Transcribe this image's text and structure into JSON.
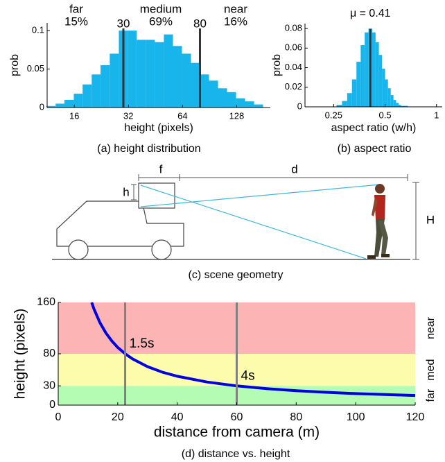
{
  "chart_data": [
    {
      "type": "histogram",
      "caption": "(a) height distribution",
      "xlabel": "height (pixels)",
      "ylabel": "prob",
      "xscale": "log",
      "bins": [
        11.2,
        12.6,
        14.1,
        15.9,
        17.8,
        20,
        22.4,
        25.2,
        28.3,
        31.7,
        35.6,
        40,
        44.9,
        50.4,
        56.6,
        63.5,
        71.3,
        80,
        89.8,
        100.8,
        113.1,
        127,
        142.5,
        160,
        179.6
      ],
      "values": [
        0.002,
        0.005,
        0.01,
        0.018,
        0.03,
        0.043,
        0.055,
        0.07,
        0.1,
        0.1,
        0.088,
        0.088,
        0.085,
        0.095,
        0.08,
        0.07,
        0.058,
        0.043,
        0.035,
        0.025,
        0.02,
        0.012,
        0.008,
        0.004
      ],
      "color": "#18b4ec",
      "xlim": [
        11.3,
        197
      ],
      "xticks": [
        16,
        32,
        64,
        128
      ],
      "ylim": [
        0,
        0.11
      ],
      "yticks": [
        0,
        0.05,
        0.1
      ],
      "vlines": [
        30,
        80
      ],
      "vline_color": "#333333",
      "regions": {
        "names": [
          "far",
          "medium",
          "near"
        ],
        "values": [
          15,
          69,
          16
        ],
        "value_labels": [
          "15%",
          "69%",
          "16%"
        ]
      }
    },
    {
      "type": "histogram",
      "caption": "(b) aspect ratio",
      "xlabel": "aspect ratio (w/h)",
      "ylabel": "prob",
      "xscale": "log",
      "bins": [
        0.2,
        0.22,
        0.24,
        0.26,
        0.28,
        0.3,
        0.32,
        0.34,
        0.36,
        0.38,
        0.4,
        0.42,
        0.44,
        0.46,
        0.48,
        0.5,
        0.52,
        0.54,
        0.56,
        0.58,
        0.6,
        0.62,
        0.64,
        0.66,
        0.68,
        0.7,
        0.72,
        0.74,
        0.76,
        0.78,
        0.8
      ],
      "values": [
        0,
        0,
        0,
        0.002,
        0.006,
        0.014,
        0.028,
        0.046,
        0.063,
        0.076,
        0.08,
        0.076,
        0.066,
        0.053,
        0.039,
        0.028,
        0.019,
        0.012,
        0.007,
        0.004,
        0.002,
        0.001,
        0.001,
        0.001,
        0,
        0,
        0,
        0,
        0,
        0
      ],
      "color": "#18b4ec",
      "xlim": [
        0.17,
        1.08
      ],
      "xticks": [
        0.25,
        0.5,
        1
      ],
      "ylim": [
        0,
        0.085
      ],
      "yticks": [
        0,
        0.02,
        0.04,
        0.06,
        0.08
      ],
      "vlines": [
        {
          "value": 0.41,
          "label": "μ = 0.41"
        }
      ],
      "vline_color": "#333333"
    },
    {
      "type": "line",
      "caption": "(d) distance vs. height",
      "xlabel": "distance from camera (m)",
      "ylabel": "height (pixels)",
      "x": [
        11.25,
        12,
        14,
        16,
        18,
        20,
        22.5,
        25,
        30,
        35,
        40,
        50,
        60,
        70,
        80,
        90,
        100,
        110,
        120
      ],
      "values": [
        160,
        150,
        128.6,
        112.5,
        100,
        90,
        80,
        72,
        60,
        51.4,
        45,
        36,
        30,
        25.7,
        22.5,
        20,
        18,
        16.4,
        15
      ],
      "color": "#0000e0",
      "xlim": [
        0,
        120
      ],
      "xticks": [
        0,
        20,
        40,
        60,
        80,
        100,
        120
      ],
      "ylim": [
        0,
        160
      ],
      "yticks": [
        0,
        30,
        80,
        160
      ],
      "vlines": [
        {
          "value": 22.5,
          "label": "1.5s"
        },
        {
          "value": 60,
          "label": "4s"
        }
      ],
      "vline_color": "#808080",
      "bands": [
        {
          "name": "far",
          "from": 0,
          "to": 30,
          "color": "#b4fcb4",
          "text_color": "#3f7a3f"
        },
        {
          "name": "med",
          "from": 30,
          "to": 80,
          "color": "#fcfcac",
          "text_color": "#6e7a45"
        },
        {
          "name": "near",
          "from": 80,
          "to": 160,
          "color": "#fcb4b4",
          "text_color": "#8a6a6a"
        }
      ]
    }
  ],
  "scene": {
    "caption": "(c) scene geometry",
    "labels": {
      "f": "f",
      "d": "d",
      "h": "h",
      "H": "H"
    }
  }
}
